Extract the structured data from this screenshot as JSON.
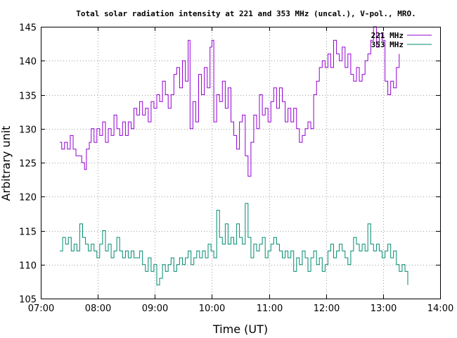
{
  "chart_data": {
    "type": "line",
    "title": "Total solar radiation intensity at 221 and 353 MHz (uncal.), V-pol., MRO.",
    "xlabel": "Time (UT)",
    "ylabel": "Arbitrary unit",
    "xlim": [
      "07:00",
      "14:00"
    ],
    "ylim": [
      105,
      145
    ],
    "x_ticks": [
      "07:00",
      "08:00",
      "09:00",
      "10:00",
      "11:00",
      "12:00",
      "13:00",
      "14:00"
    ],
    "y_ticks": [
      105,
      110,
      115,
      120,
      125,
      130,
      135,
      140,
      145
    ],
    "grid": true,
    "legend_position": "top-right",
    "series": [
      {
        "name": "221 MHz",
        "color": "#9400d3",
        "points": [
          [
            "07:20",
            128
          ],
          [
            "07:22",
            127
          ],
          [
            "07:25",
            128
          ],
          [
            "07:28",
            127
          ],
          [
            "07:31",
            129
          ],
          [
            "07:34",
            127
          ],
          [
            "07:37",
            126
          ],
          [
            "07:40",
            126
          ],
          [
            "07:43",
            125
          ],
          [
            "07:46",
            124
          ],
          [
            "07:48",
            127
          ],
          [
            "07:51",
            128
          ],
          [
            "07:53",
            130
          ],
          [
            "07:56",
            128
          ],
          [
            "07:59",
            130
          ],
          [
            "08:02",
            129
          ],
          [
            "08:05",
            131
          ],
          [
            "08:08",
            128
          ],
          [
            "08:11",
            130
          ],
          [
            "08:14",
            129
          ],
          [
            "08:17",
            132
          ],
          [
            "08:20",
            130
          ],
          [
            "08:23",
            129
          ],
          [
            "08:26",
            131
          ],
          [
            "08:29",
            129
          ],
          [
            "08:32",
            131
          ],
          [
            "08:35",
            130
          ],
          [
            "08:38",
            133
          ],
          [
            "08:41",
            132
          ],
          [
            "08:44",
            134
          ],
          [
            "08:47",
            132
          ],
          [
            "08:50",
            133
          ],
          [
            "08:53",
            131
          ],
          [
            "08:56",
            134
          ],
          [
            "08:59",
            133
          ],
          [
            "09:02",
            135
          ],
          [
            "09:05",
            134
          ],
          [
            "09:08",
            137
          ],
          [
            "09:11",
            135
          ],
          [
            "09:14",
            133
          ],
          [
            "09:17",
            135
          ],
          [
            "09:20",
            138
          ],
          [
            "09:23",
            139
          ],
          [
            "09:26",
            136
          ],
          [
            "09:29",
            140
          ],
          [
            "09:32",
            137
          ],
          [
            "09:35",
            143
          ],
          [
            "09:37",
            130
          ],
          [
            "09:40",
            134
          ],
          [
            "09:43",
            131
          ],
          [
            "09:46",
            138
          ],
          [
            "09:49",
            135
          ],
          [
            "09:52",
            139
          ],
          [
            "09:55",
            136
          ],
          [
            "09:58",
            142
          ],
          [
            "10:00",
            143
          ],
          [
            "10:02",
            131
          ],
          [
            "10:05",
            135
          ],
          [
            "10:08",
            134
          ],
          [
            "10:11",
            137
          ],
          [
            "10:14",
            133
          ],
          [
            "10:17",
            136
          ],
          [
            "10:20",
            131
          ],
          [
            "10:23",
            129
          ],
          [
            "10:26",
            127
          ],
          [
            "10:29",
            131
          ],
          [
            "10:32",
            132
          ],
          [
            "10:35",
            126
          ],
          [
            "10:38",
            123
          ],
          [
            "10:41",
            128
          ],
          [
            "10:44",
            132
          ],
          [
            "10:47",
            130
          ],
          [
            "10:50",
            135
          ],
          [
            "10:53",
            132
          ],
          [
            "10:56",
            133
          ],
          [
            "10:59",
            131
          ],
          [
            "11:02",
            134
          ],
          [
            "11:05",
            136
          ],
          [
            "11:08",
            133
          ],
          [
            "11:11",
            136
          ],
          [
            "11:14",
            134
          ],
          [
            "11:17",
            131
          ],
          [
            "11:20",
            133
          ],
          [
            "11:23",
            131
          ],
          [
            "11:26",
            133
          ],
          [
            "11:29",
            130
          ],
          [
            "11:32",
            128
          ],
          [
            "11:35",
            129
          ],
          [
            "11:38",
            130
          ],
          [
            "11:41",
            131
          ],
          [
            "11:44",
            130
          ],
          [
            "11:47",
            135
          ],
          [
            "11:50",
            137
          ],
          [
            "11:53",
            139
          ],
          [
            "11:56",
            140
          ],
          [
            "11:59",
            139
          ],
          [
            "12:02",
            141
          ],
          [
            "12:05",
            139
          ],
          [
            "12:08",
            143
          ],
          [
            "12:11",
            141
          ],
          [
            "12:14",
            140
          ],
          [
            "12:17",
            142
          ],
          [
            "12:20",
            139
          ],
          [
            "12:23",
            141
          ],
          [
            "12:26",
            138
          ],
          [
            "12:29",
            137
          ],
          [
            "12:32",
            139
          ],
          [
            "12:35",
            137
          ],
          [
            "12:38",
            138
          ],
          [
            "12:41",
            140
          ],
          [
            "12:44",
            141
          ],
          [
            "12:47",
            143
          ],
          [
            "12:50",
            145
          ],
          [
            "12:53",
            142
          ],
          [
            "12:56",
            144
          ],
          [
            "12:59",
            143
          ],
          [
            "13:02",
            137
          ],
          [
            "13:05",
            135
          ],
          [
            "13:08",
            137
          ],
          [
            "13:11",
            136
          ],
          [
            "13:14",
            139
          ],
          [
            "13:17",
            141
          ]
        ]
      },
      {
        "name": "353 MHz",
        "color": "#008b70",
        "points": [
          [
            "07:20",
            112
          ],
          [
            "07:23",
            114
          ],
          [
            "07:26",
            113
          ],
          [
            "07:29",
            114
          ],
          [
            "07:32",
            112
          ],
          [
            "07:35",
            113
          ],
          [
            "07:38",
            112
          ],
          [
            "07:41",
            116
          ],
          [
            "07:44",
            114
          ],
          [
            "07:47",
            113
          ],
          [
            "07:50",
            112
          ],
          [
            "07:53",
            113
          ],
          [
            "07:56",
            112
          ],
          [
            "07:59",
            111
          ],
          [
            "08:02",
            113
          ],
          [
            "08:05",
            115
          ],
          [
            "08:08",
            112
          ],
          [
            "08:11",
            113
          ],
          [
            "08:14",
            111
          ],
          [
            "08:17",
            112
          ],
          [
            "08:20",
            114
          ],
          [
            "08:23",
            112
          ],
          [
            "08:26",
            111
          ],
          [
            "08:29",
            112
          ],
          [
            "08:32",
            111
          ],
          [
            "08:35",
            112
          ],
          [
            "08:38",
            111
          ],
          [
            "08:41",
            111
          ],
          [
            "08:44",
            112
          ],
          [
            "08:47",
            110
          ],
          [
            "08:50",
            109
          ],
          [
            "08:53",
            111
          ],
          [
            "08:56",
            109
          ],
          [
            "08:59",
            110
          ],
          [
            "09:02",
            107
          ],
          [
            "09:05",
            108
          ],
          [
            "09:08",
            110
          ],
          [
            "09:11",
            109
          ],
          [
            "09:14",
            110
          ],
          [
            "09:17",
            111
          ],
          [
            "09:20",
            109
          ],
          [
            "09:23",
            110
          ],
          [
            "09:26",
            111
          ],
          [
            "09:29",
            110
          ],
          [
            "09:32",
            111
          ],
          [
            "09:35",
            112
          ],
          [
            "09:38",
            110
          ],
          [
            "09:41",
            111
          ],
          [
            "09:44",
            112
          ],
          [
            "09:47",
            111
          ],
          [
            "09:50",
            112
          ],
          [
            "09:53",
            111
          ],
          [
            "09:56",
            113
          ],
          [
            "09:59",
            112
          ],
          [
            "10:02",
            111
          ],
          [
            "10:05",
            118
          ],
          [
            "10:08",
            114
          ],
          [
            "10:11",
            113
          ],
          [
            "10:14",
            116
          ],
          [
            "10:17",
            113
          ],
          [
            "10:20",
            114
          ],
          [
            "10:23",
            113
          ],
          [
            "10:26",
            116
          ],
          [
            "10:29",
            114
          ],
          [
            "10:32",
            113
          ],
          [
            "10:35",
            119
          ],
          [
            "10:38",
            114
          ],
          [
            "10:41",
            111
          ],
          [
            "10:44",
            113
          ],
          [
            "10:47",
            112
          ],
          [
            "10:50",
            113
          ],
          [
            "10:53",
            114
          ],
          [
            "10:56",
            111
          ],
          [
            "10:59",
            112
          ],
          [
            "11:02",
            113
          ],
          [
            "11:05",
            114
          ],
          [
            "11:08",
            113
          ],
          [
            "11:11",
            112
          ],
          [
            "11:14",
            111
          ],
          [
            "11:17",
            112
          ],
          [
            "11:20",
            111
          ],
          [
            "11:23",
            112
          ],
          [
            "11:26",
            109
          ],
          [
            "11:29",
            111
          ],
          [
            "11:32",
            110
          ],
          [
            "11:35",
            112
          ],
          [
            "11:38",
            111
          ],
          [
            "11:41",
            109
          ],
          [
            "11:44",
            111
          ],
          [
            "11:47",
            112
          ],
          [
            "11:50",
            110
          ],
          [
            "11:53",
            111
          ],
          [
            "11:56",
            109
          ],
          [
            "11:59",
            110
          ],
          [
            "12:02",
            112
          ],
          [
            "12:05",
            113
          ],
          [
            "12:08",
            111
          ],
          [
            "12:11",
            112
          ],
          [
            "12:14",
            113
          ],
          [
            "12:17",
            112
          ],
          [
            "12:20",
            111
          ],
          [
            "12:23",
            110
          ],
          [
            "12:26",
            112
          ],
          [
            "12:29",
            114
          ],
          [
            "12:32",
            113
          ],
          [
            "12:35",
            112
          ],
          [
            "12:38",
            113
          ],
          [
            "12:41",
            112
          ],
          [
            "12:44",
            116
          ],
          [
            "12:47",
            113
          ],
          [
            "12:50",
            112
          ],
          [
            "12:53",
            113
          ],
          [
            "12:56",
            112
          ],
          [
            "12:59",
            111
          ],
          [
            "13:02",
            112
          ],
          [
            "13:05",
            113
          ],
          [
            "13:08",
            111
          ],
          [
            "13:11",
            112
          ],
          [
            "13:14",
            110
          ],
          [
            "13:17",
            109
          ],
          [
            "13:20",
            110
          ],
          [
            "13:23",
            109
          ],
          [
            "13:26",
            107
          ]
        ]
      }
    ]
  }
}
